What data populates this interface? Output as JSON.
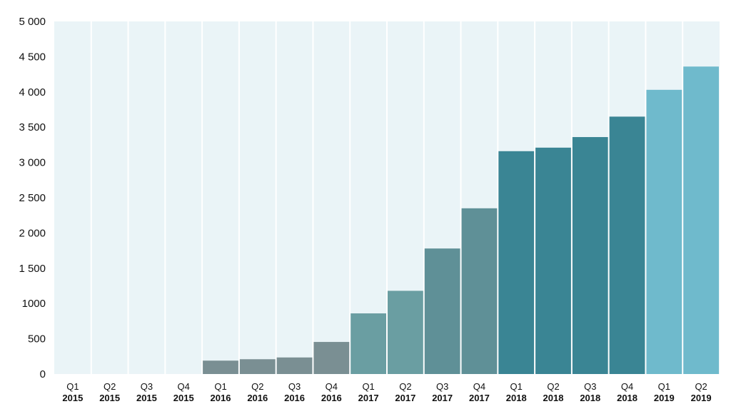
{
  "chart_data": {
    "type": "bar",
    "title": "",
    "xlabel": "",
    "ylabel": "",
    "ylim": [
      0,
      5000
    ],
    "yticks": [
      0,
      500,
      1000,
      1500,
      2000,
      2500,
      3000,
      3500,
      4000,
      4500,
      5000
    ],
    "ytick_labels": [
      "0",
      "500",
      "1000",
      "1 500",
      "2 000",
      "2 500",
      "3 000",
      "3 500",
      "4 000",
      "4 500",
      "5 000"
    ],
    "grid": false,
    "legend": "none",
    "categories": [
      {
        "quarter": "Q1",
        "year": "2015"
      },
      {
        "quarter": "Q2",
        "year": "2015"
      },
      {
        "quarter": "Q3",
        "year": "2015"
      },
      {
        "quarter": "Q4",
        "year": "2015"
      },
      {
        "quarter": "Q1",
        "year": "2016"
      },
      {
        "quarter": "Q2",
        "year": "2016"
      },
      {
        "quarter": "Q3",
        "year": "2016"
      },
      {
        "quarter": "Q4",
        "year": "2016"
      },
      {
        "quarter": "Q1",
        "year": "2017"
      },
      {
        "quarter": "Q2",
        "year": "2017"
      },
      {
        "quarter": "Q3",
        "year": "2017"
      },
      {
        "quarter": "Q4",
        "year": "2017"
      },
      {
        "quarter": "Q1",
        "year": "2018"
      },
      {
        "quarter": "Q2",
        "year": "2018"
      },
      {
        "quarter": "Q3",
        "year": "2018"
      },
      {
        "quarter": "Q4",
        "year": "2018"
      },
      {
        "quarter": "Q1",
        "year": "2019"
      },
      {
        "quarter": "Q2",
        "year": "2019"
      }
    ],
    "values": [
      0,
      0,
      0,
      0,
      190,
      210,
      235,
      455,
      860,
      1180,
      1780,
      2350,
      3160,
      3210,
      3360,
      3650,
      4030,
      4360
    ],
    "bar_colors": [
      "#8a9ea3",
      "#8a9ea3",
      "#8a9ea3",
      "#8a9ea3",
      "#7a8f93",
      "#7a8f93",
      "#7a8f93",
      "#7a8f93",
      "#6a9ea2",
      "#6a9ea2",
      "#5f9097",
      "#5f9097",
      "#3a8594",
      "#3a8594",
      "#3a8594",
      "#3a8594",
      "#6fbacc",
      "#6fbacc"
    ],
    "plot_background": "#eaf4f7",
    "column_divider_color": "#ffffff"
  }
}
